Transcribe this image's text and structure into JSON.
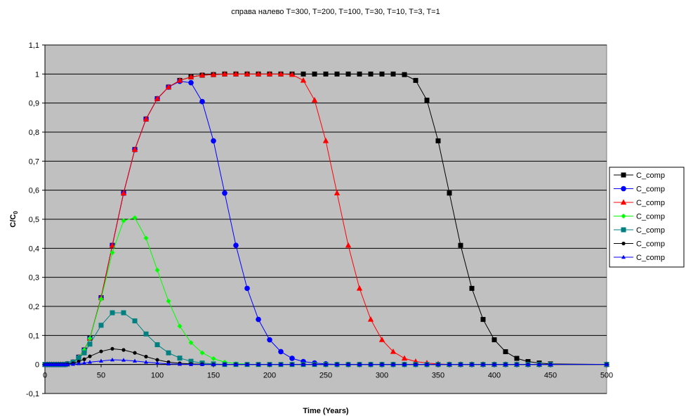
{
  "chart_data": {
    "type": "line",
    "title": "справа налево T=300, T=200, T=100, T=30, T=10, T=3, T=1",
    "xlabel": "Time (Years)",
    "ylabel_main": "C/C",
    "ylabel_sub": "0",
    "xlim": [
      0,
      500
    ],
    "ylim": [
      -0.1,
      1.1
    ],
    "x_ticks": [
      "0",
      "50",
      "100",
      "150",
      "200",
      "250",
      "300",
      "350",
      "400",
      "450",
      "500"
    ],
    "y_ticks": [
      "-0,1",
      "0",
      "0,1",
      "0,2",
      "0,3",
      "0,4",
      "0,5",
      "0,6",
      "0,7",
      "0,8",
      "0,9",
      "1",
      "1,1"
    ],
    "grid": true,
    "legend_position": "right",
    "plot_background": "#c0c0c0",
    "series": [
      {
        "name": "C_comp",
        "color": "#000000",
        "marker": "square",
        "x": [
          0,
          2,
          4,
          6,
          8,
          10,
          12,
          14,
          16,
          18,
          20,
          25,
          30,
          35,
          40,
          50,
          60,
          70,
          80,
          90,
          100,
          110,
          120,
          130,
          140,
          150,
          160,
          170,
          180,
          190,
          200,
          210,
          220,
          230,
          240,
          250,
          260,
          270,
          280,
          290,
          300,
          310,
          320,
          330,
          340,
          350,
          360,
          370,
          380,
          390,
          400,
          410,
          420,
          430,
          440,
          450,
          500
        ],
        "y": [
          0,
          0,
          0,
          0,
          0,
          0,
          0,
          0,
          0,
          0,
          0.002,
          0.008,
          0.025,
          0.05,
          0.09,
          0.23,
          0.41,
          0.59,
          0.74,
          0.845,
          0.915,
          0.955,
          0.978,
          0.99,
          0.996,
          0.998,
          1,
          1,
          1,
          1,
          1,
          1,
          1,
          1,
          1,
          1,
          1,
          1,
          1,
          1,
          1,
          1,
          0.998,
          0.978,
          0.91,
          0.77,
          0.59,
          0.41,
          0.262,
          0.155,
          0.085,
          0.044,
          0.021,
          0.01,
          0.005,
          0.002,
          0
        ]
      },
      {
        "name": "C_comp",
        "color": "#0000ff",
        "marker": "circle",
        "x": [
          0,
          2,
          4,
          6,
          8,
          10,
          12,
          14,
          16,
          18,
          20,
          25,
          30,
          35,
          40,
          50,
          60,
          70,
          80,
          90,
          100,
          110,
          120,
          130,
          140,
          150,
          160,
          170,
          180,
          190,
          200,
          210,
          220,
          230,
          240,
          250,
          260,
          270,
          280,
          290,
          300,
          310,
          320,
          330,
          340,
          350,
          360,
          370,
          380,
          390,
          400,
          410,
          420,
          430,
          440,
          450,
          500
        ],
        "y": [
          0,
          0,
          0,
          0,
          0,
          0,
          0,
          0,
          0,
          0,
          0.002,
          0.008,
          0.025,
          0.05,
          0.09,
          0.23,
          0.41,
          0.59,
          0.74,
          0.845,
          0.915,
          0.955,
          0.975,
          0.97,
          0.905,
          0.77,
          0.59,
          0.41,
          0.262,
          0.155,
          0.085,
          0.044,
          0.021,
          0.01,
          0.005,
          0.002,
          0,
          0,
          0,
          0,
          0,
          0,
          0,
          0,
          0,
          0,
          0,
          0,
          0,
          0,
          0,
          0,
          0,
          0,
          0,
          0,
          0
        ]
      },
      {
        "name": "C_comp",
        "color": "#ff0000",
        "marker": "triangle",
        "x": [
          0,
          2,
          4,
          6,
          8,
          10,
          12,
          14,
          16,
          18,
          20,
          25,
          30,
          35,
          40,
          50,
          60,
          70,
          80,
          90,
          100,
          110,
          120,
          130,
          140,
          150,
          160,
          170,
          180,
          190,
          200,
          210,
          220,
          230,
          240,
          250,
          260,
          270,
          280,
          290,
          300,
          310,
          320,
          330,
          340,
          350,
          360,
          370,
          380,
          390,
          400,
          410,
          420,
          430,
          440,
          450,
          500
        ],
        "y": [
          0,
          0,
          0,
          0,
          0,
          0,
          0,
          0,
          0,
          0,
          0.002,
          0.008,
          0.025,
          0.05,
          0.09,
          0.23,
          0.41,
          0.59,
          0.74,
          0.845,
          0.915,
          0.955,
          0.978,
          0.99,
          0.996,
          0.998,
          1,
          1,
          1,
          1,
          1,
          1,
          0.998,
          0.978,
          0.91,
          0.77,
          0.59,
          0.41,
          0.262,
          0.155,
          0.085,
          0.044,
          0.021,
          0.01,
          0.005,
          0.002,
          0,
          0,
          0,
          0,
          0,
          0,
          0,
          0,
          0,
          0,
          0
        ]
      },
      {
        "name": "C_comp",
        "color": "#00ff00",
        "marker": "diamond",
        "x": [
          0,
          2,
          4,
          6,
          8,
          10,
          12,
          14,
          16,
          18,
          20,
          25,
          30,
          35,
          40,
          50,
          60,
          70,
          80,
          90,
          100,
          110,
          120,
          130,
          140,
          150,
          160,
          170,
          180,
          190,
          200,
          210,
          220,
          230,
          240,
          250,
          260,
          270,
          280,
          290,
          300,
          310,
          320,
          330,
          340,
          350,
          360,
          370,
          380,
          390,
          400,
          410,
          420,
          430,
          440,
          450,
          500
        ],
        "y": [
          0,
          0,
          0,
          0,
          0,
          0,
          0,
          0,
          0,
          0,
          0.002,
          0.008,
          0.025,
          0.05,
          0.09,
          0.225,
          0.385,
          0.495,
          0.505,
          0.435,
          0.325,
          0.218,
          0.132,
          0.075,
          0.04,
          0.02,
          0.008,
          0.003,
          0.001,
          0,
          0,
          0,
          0,
          0,
          0,
          0,
          0,
          0,
          0,
          0,
          0,
          0,
          0,
          0,
          0,
          0,
          0,
          0,
          0,
          0,
          0,
          0,
          0,
          0,
          0,
          0,
          0
        ]
      },
      {
        "name": "C_comp",
        "color": "#008080",
        "marker": "square",
        "x": [
          0,
          2,
          4,
          6,
          8,
          10,
          12,
          14,
          16,
          18,
          20,
          25,
          30,
          35,
          40,
          50,
          60,
          70,
          80,
          90,
          100,
          110,
          120,
          130,
          140,
          150,
          160,
          170,
          180,
          190,
          200,
          210,
          220,
          230,
          240,
          250,
          260,
          270,
          280,
          290,
          300,
          310,
          320,
          330,
          340,
          350,
          360,
          370,
          380,
          390,
          400,
          410,
          420,
          430,
          440,
          450,
          500
        ],
        "y": [
          0,
          0,
          0,
          0,
          0,
          0,
          0,
          0,
          0,
          0,
          0.002,
          0.008,
          0.022,
          0.04,
          0.07,
          0.135,
          0.178,
          0.178,
          0.15,
          0.105,
          0.068,
          0.04,
          0.022,
          0.011,
          0.005,
          0.002,
          0,
          0,
          0,
          0,
          0,
          0,
          0,
          0,
          0,
          0,
          0,
          0,
          0,
          0,
          0,
          0,
          0,
          0,
          0,
          0,
          0,
          0,
          0,
          0,
          0,
          0,
          0,
          0,
          0,
          0,
          0
        ]
      },
      {
        "name": "C_comp",
        "color": "#000000",
        "marker": "circle-small",
        "x": [
          0,
          2,
          4,
          6,
          8,
          10,
          12,
          14,
          16,
          18,
          20,
          25,
          30,
          35,
          40,
          50,
          60,
          70,
          80,
          90,
          100,
          110,
          120,
          130,
          140,
          150,
          160,
          170,
          180,
          190,
          200,
          210,
          220,
          230,
          240,
          250,
          260,
          270,
          280,
          290,
          300,
          310,
          320,
          330,
          340,
          350,
          360,
          370,
          380,
          390,
          400,
          410,
          420,
          430,
          440,
          450,
          500
        ],
        "y": [
          0,
          0,
          0,
          0,
          0,
          0,
          0,
          0,
          0,
          0,
          0.001,
          0.004,
          0.01,
          0.018,
          0.028,
          0.045,
          0.054,
          0.05,
          0.04,
          0.027,
          0.016,
          0.008,
          0.004,
          0.002,
          0.001,
          0,
          0,
          0,
          0,
          0,
          0,
          0,
          0,
          0,
          0,
          0,
          0,
          0,
          0,
          0,
          0,
          0,
          0,
          0,
          0,
          0,
          0,
          0,
          0,
          0,
          0,
          0,
          0,
          0,
          0,
          0,
          0
        ]
      },
      {
        "name": "C_comp",
        "color": "#0000ff",
        "marker": "triangle-small",
        "x": [
          0,
          2,
          4,
          6,
          8,
          10,
          12,
          14,
          16,
          18,
          20,
          25,
          30,
          35,
          40,
          50,
          60,
          70,
          80,
          90,
          100,
          110,
          120,
          130,
          140,
          150,
          160,
          170,
          180,
          190,
          200,
          210,
          220,
          230,
          240,
          250,
          260,
          270,
          280,
          290,
          300,
          310,
          320,
          330,
          340,
          350,
          360,
          370,
          380,
          390,
          400,
          410,
          420,
          430,
          440,
          450,
          500
        ],
        "y": [
          0,
          0,
          0,
          0,
          0,
          0,
          0,
          0,
          0,
          0,
          0,
          0.001,
          0.003,
          0.005,
          0.008,
          0.012,
          0.016,
          0.015,
          0.012,
          0.008,
          0.005,
          0.002,
          0.001,
          0,
          0,
          0,
          0,
          0,
          0,
          0,
          0,
          0,
          0,
          0,
          0,
          0,
          0,
          0,
          0,
          0,
          0,
          0,
          0,
          0,
          0,
          0,
          0,
          0,
          0,
          0,
          0,
          0,
          0,
          0,
          0,
          0,
          0
        ]
      }
    ]
  }
}
